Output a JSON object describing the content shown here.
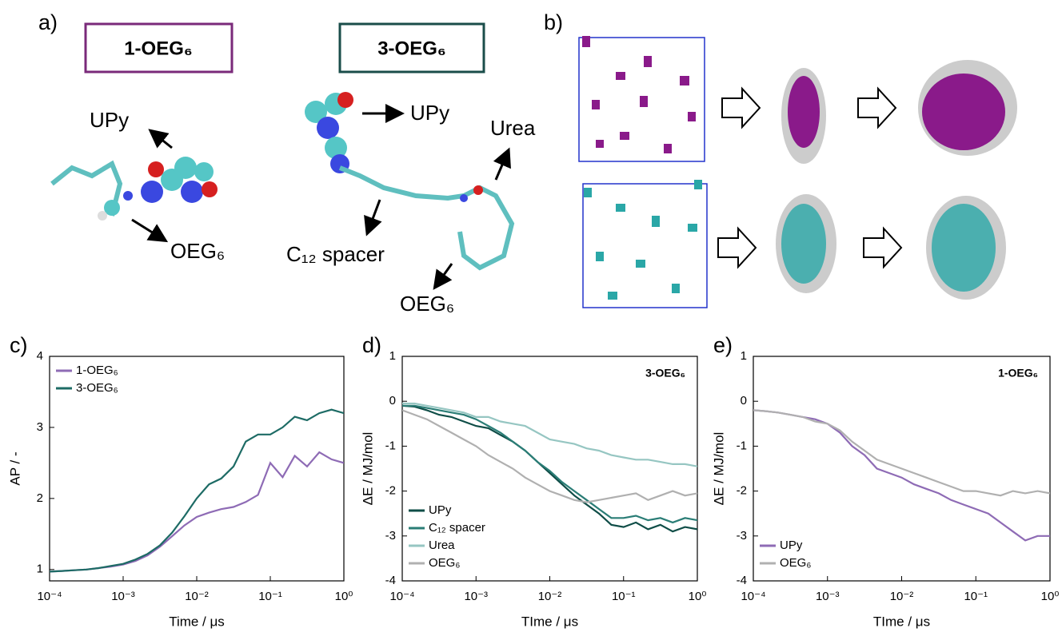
{
  "panels": {
    "a": {
      "label": "a)",
      "molecules": [
        {
          "name": "1-OEG₆",
          "labels": [
            "UPy",
            "OEG₆"
          ]
        },
        {
          "name": "3-OEG₆",
          "labels": [
            "UPy",
            "Urea",
            "C₁₂ spacer",
            "OEG₆"
          ]
        }
      ]
    },
    "b": {
      "label": "b)"
    }
  },
  "chart_data": [
    {
      "type": "line",
      "panel_label": "c)",
      "xlabel": "Time / μs",
      "ylabel": "AP / -",
      "xscale": "log",
      "legend": "upper left",
      "xlim": [
        0.0001,
        1
      ],
      "xticks": [
        {
          "value": 0.0001,
          "label": "10⁻⁴"
        },
        {
          "value": 0.001,
          "label": "10⁻³"
        },
        {
          "value": 0.01,
          "label": "10⁻²"
        },
        {
          "value": 0.1,
          "label": "10⁻¹"
        },
        {
          "value": 1,
          "label": "10⁰"
        }
      ],
      "ylim": [
        0.84,
        4
      ],
      "yticks": [
        1,
        2,
        3,
        4
      ],
      "x": [
        0.0001,
        0.000147,
        0.000215,
        0.000316,
        0.000464,
        0.000681,
        0.001,
        0.00147,
        0.00215,
        0.00316,
        0.00464,
        0.00681,
        0.01,
        0.0147,
        0.0215,
        0.0316,
        0.0464,
        0.0681,
        0.1,
        0.147,
        0.215,
        0.316,
        0.464,
        0.681,
        1
      ],
      "series": [
        {
          "name": "1-OEG₆",
          "color": "#8e6bb5",
          "values": [
            0.97,
            0.98,
            0.99,
            1.0,
            1.02,
            1.04,
            1.07,
            1.12,
            1.2,
            1.32,
            1.47,
            1.62,
            1.74,
            1.8,
            1.85,
            1.88,
            1.95,
            2.05,
            2.5,
            2.3,
            2.6,
            2.45,
            2.65,
            2.55,
            2.5
          ]
        },
        {
          "name": "3-OEG₆",
          "color": "#1d6b65",
          "values": [
            0.97,
            0.98,
            0.99,
            1.0,
            1.02,
            1.05,
            1.08,
            1.14,
            1.22,
            1.34,
            1.52,
            1.75,
            2.0,
            2.2,
            2.28,
            2.45,
            2.8,
            2.9,
            2.9,
            3.0,
            3.15,
            3.1,
            3.2,
            3.25,
            3.2
          ]
        }
      ]
    },
    {
      "type": "line",
      "panel_label": "d)",
      "annotation": "3-OEG₆",
      "xlabel": "TIme / μs",
      "ylabel": "ΔE / MJ/mol",
      "xscale": "log",
      "legend": "lower left",
      "xlim": [
        0.0001,
        1
      ],
      "xticks": [
        {
          "value": 0.0001,
          "label": "10⁻⁴"
        },
        {
          "value": 0.001,
          "label": "10⁻³"
        },
        {
          "value": 0.01,
          "label": "10⁻²"
        },
        {
          "value": 0.1,
          "label": "10⁻¹"
        },
        {
          "value": 1,
          "label": "10⁰"
        }
      ],
      "ylim": [
        -4,
        1
      ],
      "yticks": [
        -4,
        -3,
        -2,
        -1,
        0,
        1
      ],
      "x": [
        0.0001,
        0.000147,
        0.000215,
        0.000316,
        0.000464,
        0.000681,
        0.001,
        0.00147,
        0.00215,
        0.00316,
        0.00464,
        0.00681,
        0.01,
        0.0147,
        0.0215,
        0.0316,
        0.0464,
        0.0681,
        0.1,
        0.147,
        0.215,
        0.316,
        0.464,
        0.681,
        1
      ],
      "series": [
        {
          "name": "UPy",
          "color": "#0f4d47",
          "values": [
            -0.1,
            -0.12,
            -0.2,
            -0.3,
            -0.35,
            -0.45,
            -0.55,
            -0.6,
            -0.75,
            -0.9,
            -1.1,
            -1.35,
            -1.6,
            -1.85,
            -2.1,
            -2.3,
            -2.5,
            -2.75,
            -2.8,
            -2.7,
            -2.85,
            -2.75,
            -2.9,
            -2.8,
            -2.85
          ]
        },
        {
          "name": "C₁₂ spacer",
          "color": "#2a7d76",
          "values": [
            -0.1,
            -0.1,
            -0.15,
            -0.2,
            -0.25,
            -0.3,
            -0.4,
            -0.55,
            -0.7,
            -0.9,
            -1.1,
            -1.35,
            -1.55,
            -1.8,
            -2.0,
            -2.2,
            -2.4,
            -2.6,
            -2.6,
            -2.55,
            -2.65,
            -2.6,
            -2.7,
            -2.6,
            -2.65
          ]
        },
        {
          "name": "Urea",
          "color": "#96c6c2",
          "values": [
            -0.05,
            -0.05,
            -0.1,
            -0.15,
            -0.2,
            -0.25,
            -0.35,
            -0.35,
            -0.45,
            -0.5,
            -0.55,
            -0.7,
            -0.85,
            -0.9,
            -0.95,
            -1.05,
            -1.1,
            -1.2,
            -1.25,
            -1.3,
            -1.3,
            -1.35,
            -1.4,
            -1.4,
            -1.45
          ]
        },
        {
          "name": "OEG₆",
          "color": "#b0b0b0",
          "values": [
            -0.2,
            -0.3,
            -0.4,
            -0.55,
            -0.7,
            -0.85,
            -1.0,
            -1.2,
            -1.35,
            -1.5,
            -1.7,
            -1.85,
            -2.0,
            -2.1,
            -2.2,
            -2.25,
            -2.2,
            -2.15,
            -2.1,
            -2.05,
            -2.2,
            -2.1,
            -2.0,
            -2.1,
            -2.05
          ]
        }
      ]
    },
    {
      "type": "line",
      "panel_label": "e)",
      "annotation": "1-OEG₆",
      "xlabel": "TIme / μs",
      "ylabel": "ΔE / MJ/mol",
      "xscale": "log",
      "legend": "lower left",
      "xlim": [
        0.0001,
        1
      ],
      "xticks": [
        {
          "value": 0.0001,
          "label": "10⁻⁴"
        },
        {
          "value": 0.001,
          "label": "10⁻³"
        },
        {
          "value": 0.01,
          "label": "10⁻²"
        },
        {
          "value": 0.1,
          "label": "10⁻¹"
        },
        {
          "value": 1,
          "label": "10⁰"
        }
      ],
      "ylim": [
        -4,
        1
      ],
      "yticks": [
        -4,
        -3,
        -2,
        -1,
        0,
        1
      ],
      "x": [
        0.0001,
        0.000147,
        0.000215,
        0.000316,
        0.000464,
        0.000681,
        0.001,
        0.00147,
        0.00215,
        0.00316,
        0.00464,
        0.00681,
        0.01,
        0.0147,
        0.0215,
        0.0316,
        0.0464,
        0.0681,
        0.1,
        0.147,
        0.215,
        0.316,
        0.464,
        0.681,
        1
      ],
      "series": [
        {
          "name": "UPy",
          "color": "#8e6bb5",
          "values": [
            -0.2,
            -0.22,
            -0.25,
            -0.3,
            -0.35,
            -0.4,
            -0.5,
            -0.7,
            -1.0,
            -1.2,
            -1.5,
            -1.6,
            -1.7,
            -1.85,
            -1.95,
            -2.05,
            -2.2,
            -2.3,
            -2.4,
            -2.5,
            -2.7,
            -2.9,
            -3.1,
            -3.0,
            -3.0
          ]
        },
        {
          "name": "OEG₆",
          "color": "#b0b0b0",
          "values": [
            -0.2,
            -0.22,
            -0.25,
            -0.3,
            -0.35,
            -0.45,
            -0.5,
            -0.65,
            -0.9,
            -1.1,
            -1.3,
            -1.4,
            -1.5,
            -1.6,
            -1.7,
            -1.8,
            -1.9,
            -2.0,
            -2.0,
            -2.05,
            -2.1,
            -2.0,
            -2.05,
            -2.0,
            -2.05
          ]
        }
      ]
    }
  ]
}
